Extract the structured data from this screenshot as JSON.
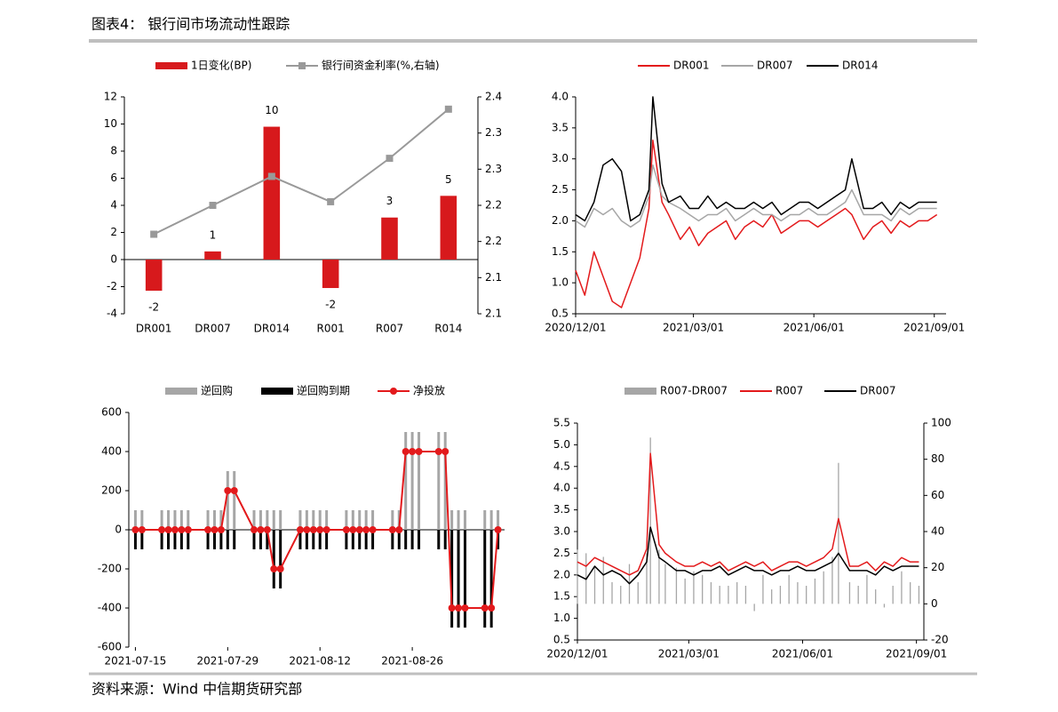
{
  "header": {
    "title": "图表4： 银行间市场流动性跟踪"
  },
  "footer": {
    "source": "资料来源：Wind 中信期货研究部"
  },
  "chart_data": [
    {
      "type": "combo",
      "categories": [
        "DR001",
        "DR007",
        "DR014",
        "R001",
        "R007",
        "R014"
      ],
      "series": [
        {
          "name": "1日变化(BP)",
          "type": "bar",
          "color": "#d7191c",
          "values": [
            -2.3,
            0.6,
            9.8,
            -2.1,
            3.1,
            4.7
          ],
          "value_labels": [
            "-2",
            "1",
            "10",
            "-2",
            "3",
            "5"
          ]
        },
        {
          "name": "银行间资金利率(%,右轴)",
          "type": "line",
          "marker": "square",
          "axis": "y2",
          "color": "#999999",
          "values": [
            2.21,
            2.25,
            2.29,
            2.255,
            2.315,
            2.383
          ]
        }
      ],
      "ylim": [
        -4,
        12
      ],
      "yticks": [
        -4,
        -2,
        0,
        2,
        4,
        6,
        8,
        10,
        12
      ],
      "y2lim": [
        2.1,
        2.4
      ],
      "y2ticks": [
        2.1,
        {
          "value": 2.15,
          "label": "2.1"
        },
        2.2,
        {
          "value": 2.25,
          "label": "2.2"
        },
        2.3,
        {
          "value": 2.35,
          "label": "2.3"
        },
        2.4
      ]
    },
    {
      "type": "line",
      "x": [
        "2020/12/01",
        "2020/12/08",
        "2020/12/15",
        "2020/12/22",
        "2020/12/29",
        "2021/01/05",
        "2021/01/12",
        "2021/01/19",
        "2021/01/26",
        "2021/01/29",
        "2021/02/05",
        "2021/02/10",
        "2021/02/19",
        "2021/02/26",
        "2021/03/05",
        "2021/03/12",
        "2021/03/19",
        "2021/03/26",
        "2021/04/02",
        "2021/04/09",
        "2021/04/16",
        "2021/04/23",
        "2021/04/30",
        "2021/05/07",
        "2021/05/14",
        "2021/05/21",
        "2021/05/28",
        "2021/06/04",
        "2021/06/11",
        "2021/06/18",
        "2021/06/25",
        "2021/06/30",
        "2021/07/09",
        "2021/07/16",
        "2021/07/23",
        "2021/07/30",
        "2021/08/06",
        "2021/08/13",
        "2021/08/20",
        "2021/08/27",
        "2021/09/03"
      ],
      "series": [
        {
          "name": "DR001",
          "type": "line",
          "color": "#e31a1c",
          "values": [
            1.2,
            0.8,
            1.5,
            1.1,
            0.7,
            0.6,
            1.0,
            1.4,
            2.2,
            3.3,
            2.3,
            2.1,
            1.7,
            1.9,
            1.6,
            1.8,
            1.9,
            2.0,
            1.7,
            1.9,
            2.0,
            1.9,
            2.1,
            1.8,
            1.9,
            2.0,
            2.0,
            1.9,
            2.0,
            2.1,
            2.2,
            2.1,
            1.7,
            1.9,
            2.0,
            1.8,
            2.0,
            1.9,
            2.0,
            2.0,
            2.1
          ]
        },
        {
          "name": "DR007",
          "type": "line",
          "color": "#a6a6a6",
          "values": [
            2.0,
            1.9,
            2.2,
            2.1,
            2.2,
            2.0,
            1.9,
            2.0,
            2.4,
            2.9,
            2.4,
            2.3,
            2.2,
            2.1,
            2.0,
            2.1,
            2.1,
            2.2,
            2.0,
            2.1,
            2.2,
            2.1,
            2.1,
            2.0,
            2.1,
            2.1,
            2.2,
            2.1,
            2.1,
            2.2,
            2.3,
            2.5,
            2.1,
            2.1,
            2.1,
            2.0,
            2.2,
            2.1,
            2.2,
            2.2,
            2.2
          ]
        },
        {
          "name": "DR014",
          "type": "line",
          "color": "#000000",
          "values": [
            2.1,
            2.0,
            2.3,
            2.9,
            3.0,
            2.8,
            2.0,
            2.1,
            2.5,
            4.0,
            2.6,
            2.3,
            2.4,
            2.2,
            2.2,
            2.4,
            2.2,
            2.3,
            2.2,
            2.2,
            2.3,
            2.2,
            2.3,
            2.1,
            2.2,
            2.3,
            2.3,
            2.2,
            2.3,
            2.4,
            2.5,
            3.0,
            2.2,
            2.2,
            2.3,
            2.1,
            2.3,
            2.2,
            2.3,
            2.3,
            2.3
          ]
        }
      ],
      "xlim": [
        "2020/12/01",
        "2021/09/10"
      ],
      "xticks": [
        "2020/12/01",
        "2021/03/01",
        "2021/06/01",
        "2021/09/01"
      ],
      "ylim": [
        0.5,
        4.0
      ],
      "yticks": [
        0.5,
        {
          "value": 1,
          "label": "1.0"
        },
        1.5,
        {
          "value": 2,
          "label": "2.0"
        },
        2.5,
        {
          "value": 3,
          "label": "3.0"
        },
        3.5,
        {
          "value": 4,
          "label": "4.0"
        }
      ]
    },
    {
      "type": "combo",
      "x": [
        "2021-07-15",
        "2021-07-16",
        "2021-07-19",
        "2021-07-20",
        "2021-07-21",
        "2021-07-22",
        "2021-07-23",
        "2021-07-26",
        "2021-07-27",
        "2021-07-28",
        "2021-07-29",
        "2021-07-30",
        "2021-08-02",
        "2021-08-03",
        "2021-08-04",
        "2021-08-05",
        "2021-08-06",
        "2021-08-09",
        "2021-08-10",
        "2021-08-11",
        "2021-08-12",
        "2021-08-13",
        "2021-08-16",
        "2021-08-17",
        "2021-08-18",
        "2021-08-19",
        "2021-08-20",
        "2021-08-23",
        "2021-08-24",
        "2021-08-25",
        "2021-08-26",
        "2021-08-27",
        "2021-08-30",
        "2021-08-31",
        "2021-09-01",
        "2021-09-02",
        "2021-09-03",
        "2021-09-06",
        "2021-09-07",
        "2021-09-08"
      ],
      "series": [
        {
          "name": "逆回购",
          "type": "bar",
          "color": "#a6a6a6",
          "values": [
            100,
            100,
            100,
            100,
            100,
            100,
            100,
            100,
            100,
            100,
            300,
            300,
            100,
            100,
            100,
            100,
            100,
            100,
            100,
            100,
            100,
            100,
            100,
            100,
            100,
            100,
            100,
            100,
            100,
            500,
            500,
            500,
            500,
            500,
            100,
            100,
            100,
            100,
            100,
            100
          ]
        },
        {
          "name": "逆回购到期",
          "type": "bar",
          "color": "#000000",
          "values": [
            -100,
            -100,
            -100,
            -100,
            -100,
            -100,
            -100,
            -100,
            -100,
            -100,
            -100,
            -100,
            -100,
            -100,
            -100,
            -300,
            -300,
            -100,
            -100,
            -100,
            -100,
            -100,
            -100,
            -100,
            -100,
            -100,
            -100,
            -100,
            -100,
            -100,
            -100,
            -100,
            -100,
            -100,
            -500,
            -500,
            -500,
            -500,
            -500,
            -100
          ]
        },
        {
          "name": "净投放",
          "type": "line",
          "marker": "circle",
          "color": "#e31a1c",
          "values": [
            0,
            0,
            0,
            0,
            0,
            0,
            0,
            0,
            0,
            0,
            200,
            200,
            0,
            0,
            0,
            -200,
            -200,
            0,
            0,
            0,
            0,
            0,
            0,
            0,
            0,
            0,
            0,
            0,
            0,
            400,
            400,
            400,
            400,
            400,
            -400,
            -400,
            -400,
            -400,
            -400,
            0
          ]
        }
      ],
      "xlim": [
        "2021-07-14",
        "2021-09-09"
      ],
      "xticks": [
        "2021-07-15",
        "2021-07-29",
        "2021-08-12",
        "2021-08-26"
      ],
      "ylim": [
        -600,
        600
      ],
      "yticks": [
        -600,
        -400,
        -200,
        0,
        200,
        400,
        600
      ]
    },
    {
      "type": "combo",
      "x": [
        "2020/12/01",
        "2020/12/08",
        "2020/12/15",
        "2020/12/22",
        "2020/12/29",
        "2021/01/05",
        "2021/01/12",
        "2021/01/19",
        "2021/01/26",
        "2021/01/29",
        "2021/02/05",
        "2021/02/10",
        "2021/02/19",
        "2021/02/26",
        "2021/03/05",
        "2021/03/12",
        "2021/03/19",
        "2021/03/26",
        "2021/04/02",
        "2021/04/09",
        "2021/04/16",
        "2021/04/23",
        "2021/04/30",
        "2021/05/07",
        "2021/05/14",
        "2021/05/21",
        "2021/05/28",
        "2021/06/04",
        "2021/06/11",
        "2021/06/18",
        "2021/06/25",
        "2021/06/30",
        "2021/07/09",
        "2021/07/16",
        "2021/07/23",
        "2021/07/30",
        "2021/08/06",
        "2021/08/13",
        "2021/08/20",
        "2021/08/27",
        "2021/09/03"
      ],
      "series": [
        {
          "name": "R007-DR007",
          "type": "bar",
          "axis": "y2",
          "color": "#a6a6a6",
          "values": [
            30,
            28,
            20,
            26,
            12,
            10,
            22,
            12,
            28,
            92,
            30,
            22,
            20,
            14,
            18,
            16,
            12,
            10,
            10,
            12,
            10,
            -4,
            16,
            8,
            10,
            16,
            12,
            10,
            14,
            18,
            26,
            78,
            12,
            10,
            16,
            8,
            -2,
            10,
            18,
            12,
            10
          ]
        },
        {
          "name": "R007",
          "type": "line",
          "color": "#e31a1c",
          "values": [
            2.3,
            2.2,
            2.4,
            2.3,
            2.2,
            2.1,
            2.0,
            2.1,
            2.6,
            4.8,
            2.7,
            2.5,
            2.3,
            2.2,
            2.2,
            2.3,
            2.2,
            2.3,
            2.1,
            2.2,
            2.3,
            2.2,
            2.3,
            2.1,
            2.2,
            2.3,
            2.3,
            2.2,
            2.3,
            2.4,
            2.6,
            3.3,
            2.2,
            2.2,
            2.3,
            2.1,
            2.3,
            2.2,
            2.4,
            2.3,
            2.3
          ]
        },
        {
          "name": "DR007",
          "type": "line",
          "color": "#000000",
          "values": [
            2.0,
            1.9,
            2.2,
            2.0,
            2.1,
            2.0,
            1.8,
            2.0,
            2.3,
            3.1,
            2.4,
            2.3,
            2.1,
            2.1,
            2.0,
            2.1,
            2.1,
            2.2,
            2.0,
            2.1,
            2.2,
            2.1,
            2.1,
            2.0,
            2.1,
            2.1,
            2.2,
            2.1,
            2.1,
            2.2,
            2.3,
            2.5,
            2.1,
            2.1,
            2.1,
            2.0,
            2.2,
            2.1,
            2.2,
            2.2,
            2.2
          ]
        }
      ],
      "xlim": [
        "2020/12/01",
        "2021/09/07"
      ],
      "xticks": [
        "2020/12/01",
        "2021/03/01",
        "2021/06/01",
        "2021/09/01"
      ],
      "ylim": [
        0.5,
        5.5
      ],
      "yticks": [
        0.5,
        {
          "value": 1,
          "label": "1.0"
        },
        1.5,
        {
          "value": 2,
          "label": "2.0"
        },
        2.5,
        {
          "value": 3,
          "label": "3.0"
        },
        3.5,
        {
          "value": 4,
          "label": "4.0"
        },
        4.5,
        {
          "value": 5,
          "label": "5.0"
        },
        5.5
      ],
      "y2lim": [
        -20,
        100
      ],
      "y2ticks": [
        -20,
        0,
        20,
        40,
        60,
        80,
        100
      ]
    }
  ]
}
